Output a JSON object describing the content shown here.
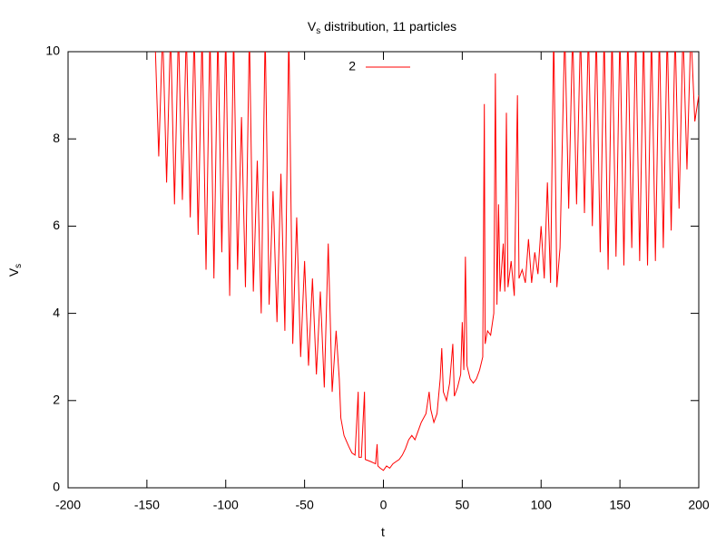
{
  "chart_data": {
    "type": "line",
    "title": {
      "main": "V",
      "sub": "s",
      "rest": " distribution, 11 particles"
    },
    "x_label": "t",
    "y_label": {
      "main": "V",
      "sub": "s"
    },
    "xlim": [
      -200,
      200
    ],
    "xticks": [
      -200,
      -150,
      -100,
      -50,
      0,
      50,
      100,
      150,
      200
    ],
    "ylim": [
      0,
      10
    ],
    "yticks": [
      0,
      2,
      4,
      6,
      8,
      10
    ],
    "grid": false,
    "legend": "top",
    "series": [
      {
        "name": "2",
        "color": "#ff0000",
        "x": [
          -145,
          -142.5,
          -140,
          -137.5,
          -135,
          -132.5,
          -130,
          -127.5,
          -125,
          -122.5,
          -120,
          -117.5,
          -115,
          -112.5,
          -110,
          -107.5,
          -105,
          -102.5,
          -100,
          -97.5,
          -95,
          -92.5,
          -90,
          -87.5,
          -85,
          -82.5,
          -80,
          -77.5,
          -75,
          -72.5,
          -70,
          -67.5,
          -65,
          -62.5,
          -60,
          -57.5,
          -55,
          -52.5,
          -50,
          -47.5,
          -45,
          -42.5,
          -40,
          -37.5,
          -35,
          -32.5,
          -30,
          -28,
          -27,
          -25,
          -22,
          -20,
          -18,
          -16,
          -15.5,
          -14,
          -12,
          -11.5,
          -8,
          -5,
          -4,
          -3.5,
          -2,
          0,
          2,
          4,
          6,
          8,
          10,
          12,
          14,
          16,
          18,
          20,
          22,
          24,
          27,
          29,
          30,
          32,
          34,
          36,
          37,
          38,
          40,
          42,
          44,
          45,
          47,
          49,
          50,
          51,
          52,
          53,
          55,
          57,
          59,
          61,
          63,
          64,
          64.5,
          66,
          68,
          70,
          71,
          72,
          73,
          74,
          76,
          77,
          78,
          79,
          81,
          83,
          85,
          86,
          88,
          90,
          92,
          94,
          96,
          98,
          100,
          102,
          104,
          106,
          108,
          110,
          112,
          115,
          117.5,
          120,
          122.5,
          125,
          127.5,
          130,
          132.5,
          135,
          137.5,
          140,
          142.5,
          145,
          147.5,
          150,
          152.5,
          155,
          157.5,
          160,
          162.5,
          165,
          167.5,
          170,
          172.5,
          175,
          177.5,
          180,
          182.5,
          185,
          187.5,
          190,
          192.5,
          195,
          197.5,
          200
        ],
        "values": [
          10.5,
          7.6,
          10.5,
          7.0,
          10.5,
          6.5,
          10.5,
          6.6,
          10.5,
          6.2,
          10.5,
          5.8,
          10.5,
          5.0,
          10.5,
          4.8,
          10.5,
          5.4,
          10.5,
          4.4,
          10.5,
          5.0,
          8.5,
          4.6,
          10.5,
          4.5,
          7.5,
          4.0,
          10.5,
          4.2,
          6.8,
          3.8,
          7.2,
          3.6,
          10.5,
          3.3,
          6.2,
          3.0,
          5.2,
          2.8,
          4.8,
          2.6,
          4.5,
          2.3,
          5.6,
          2.2,
          3.6,
          2.5,
          1.6,
          1.2,
          0.95,
          0.8,
          0.75,
          2.2,
          0.7,
          0.7,
          2.2,
          0.65,
          0.6,
          0.55,
          1.0,
          0.5,
          0.45,
          0.4,
          0.5,
          0.45,
          0.55,
          0.6,
          0.65,
          0.75,
          0.9,
          1.1,
          1.2,
          1.1,
          1.3,
          1.5,
          1.7,
          2.2,
          1.8,
          1.5,
          1.7,
          2.5,
          3.2,
          2.2,
          2.0,
          2.4,
          3.3,
          2.1,
          2.3,
          2.6,
          3.8,
          2.7,
          5.3,
          2.8,
          2.5,
          2.4,
          2.5,
          2.7,
          3.0,
          8.8,
          3.3,
          3.6,
          3.5,
          4.0,
          9.5,
          4.2,
          6.5,
          4.5,
          5.6,
          4.5,
          8.6,
          4.6,
          5.2,
          4.4,
          9.0,
          4.8,
          5.0,
          4.7,
          5.7,
          4.7,
          5.4,
          4.9,
          6.0,
          4.8,
          7.0,
          4.7,
          10.5,
          4.6,
          5.5,
          10.5,
          6.4,
          10.5,
          6.5,
          10.5,
          6.3,
          10.5,
          6.0,
          10.5,
          5.4,
          10.5,
          5.0,
          10.5,
          5.3,
          10.5,
          5.1,
          10.5,
          5.5,
          10.5,
          5.2,
          10.5,
          5.1,
          10.5,
          5.2,
          10.5,
          5.5,
          10.5,
          5.9,
          10.5,
          6.4,
          10.5,
          7.3,
          10.5,
          8.4,
          9.0
        ]
      }
    ]
  }
}
